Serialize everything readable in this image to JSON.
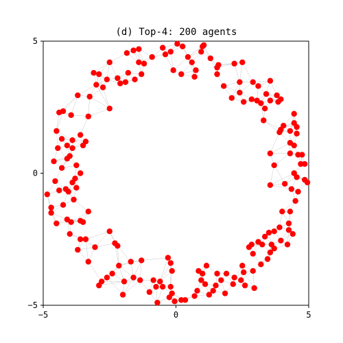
{
  "chart_data": {
    "type": "scatter",
    "title": "(d) Top-4: 200 agents",
    "xlabel": "",
    "ylabel": "",
    "xlim": [
      -5,
      5
    ],
    "ylim": [
      -5,
      5
    ],
    "x_ticks": [
      {
        "value": -5,
        "label": "−5"
      },
      {
        "value": 0,
        "label": "0"
      },
      {
        "value": 5,
        "label": "5"
      }
    ],
    "y_ticks": [
      {
        "value": -5,
        "label": "−5"
      },
      {
        "value": 0,
        "label": "0"
      },
      {
        "value": 5,
        "label": "5"
      }
    ],
    "grid": false,
    "legend": "none",
    "colors": {
      "agent": "#ff0000",
      "edge": "#b3b3b3"
    },
    "series": [
      {
        "points": [
          [
            -4.6,
            0.45
          ],
          [
            -4.85,
            -0.8
          ],
          [
            -4.7,
            -1.5
          ],
          [
            -4.55,
            -0.3
          ],
          [
            -4.4,
            -0.65
          ],
          [
            -4.25,
            -1.2
          ],
          [
            -4.1,
            -1.75
          ],
          [
            -4.0,
            -2.3
          ],
          [
            -3.85,
            -1.0
          ],
          [
            -4.5,
            -1.9
          ],
          [
            -4.3,
            0.2
          ],
          [
            -4.0,
            0.65
          ],
          [
            -3.75,
            0.3
          ],
          [
            -4.45,
            0.95
          ],
          [
            -4.5,
            1.6
          ],
          [
            -4.3,
            1.3
          ],
          [
            -4.1,
            1.05
          ],
          [
            -3.9,
            1.25
          ],
          [
            -3.6,
            1.45
          ],
          [
            -3.4,
            1.2
          ],
          [
            -4.4,
            2.3
          ],
          [
            -4.25,
            2.35
          ],
          [
            -3.95,
            2.2
          ],
          [
            -3.7,
            2.95
          ],
          [
            -3.3,
            2.15
          ],
          [
            -3.25,
            2.9
          ],
          [
            -3.1,
            3.8
          ],
          [
            -3.0,
            3.35
          ],
          [
            -2.9,
            3.75
          ],
          [
            -2.6,
            3.55
          ],
          [
            -2.5,
            4.2
          ],
          [
            -2.5,
            2.45
          ],
          [
            -2.2,
            3.6
          ],
          [
            -2.1,
            3.4
          ],
          [
            -1.9,
            3.45
          ],
          [
            -1.8,
            3.8
          ],
          [
            -1.85,
            4.55
          ],
          [
            -1.6,
            4.65
          ],
          [
            -1.4,
            4.7
          ],
          [
            -1.4,
            4.2
          ],
          [
            -1.3,
            3.75
          ],
          [
            -1.2,
            4.15
          ],
          [
            -0.9,
            4.4
          ],
          [
            -0.5,
            4.75
          ],
          [
            -0.4,
            4.5
          ],
          [
            -0.2,
            4.6
          ],
          [
            -0.1,
            3.9
          ],
          [
            0.05,
            4.9
          ],
          [
            0.25,
            4.8
          ],
          [
            0.2,
            3.75
          ],
          [
            0.45,
            4.4
          ],
          [
            0.6,
            4.2
          ],
          [
            0.7,
            3.65
          ],
          [
            0.95,
            4.6
          ],
          [
            1.0,
            4.8
          ],
          [
            1.05,
            4.85
          ],
          [
            1.3,
            4.35
          ],
          [
            1.55,
            4.0
          ],
          [
            1.6,
            4.1
          ],
          [
            1.55,
            3.75
          ],
          [
            1.8,
            3.3
          ],
          [
            2.1,
            2.85
          ],
          [
            2.2,
            4.15
          ],
          [
            2.5,
            4.2
          ],
          [
            2.4,
            3.45
          ],
          [
            2.4,
            3.05
          ],
          [
            2.55,
            2.7
          ],
          [
            2.85,
            2.8
          ],
          [
            3.05,
            2.75
          ],
          [
            3.1,
            3.3
          ],
          [
            3.2,
            2.65
          ],
          [
            3.35,
            2.45
          ],
          [
            3.4,
            3.0
          ],
          [
            3.55,
            2.75
          ],
          [
            3.55,
            3.5
          ],
          [
            3.85,
            2.7
          ],
          [
            3.8,
            2.95
          ],
          [
            3.95,
            2.8
          ],
          [
            3.3,
            2.0
          ],
          [
            3.95,
            1.65
          ],
          [
            4.05,
            1.8
          ],
          [
            4.3,
            1.6
          ],
          [
            4.45,
            1.9
          ],
          [
            4.45,
            2.25
          ],
          [
            4.55,
            1.5
          ],
          [
            4.3,
            1.15
          ],
          [
            4.45,
            1.05
          ],
          [
            4.6,
            0.7
          ],
          [
            4.75,
            0.7
          ],
          [
            4.85,
            0.35
          ],
          [
            4.45,
            0.0
          ],
          [
            4.55,
            -0.15
          ],
          [
            4.7,
            0.35
          ],
          [
            4.85,
            -0.25
          ],
          [
            4.95,
            -0.35
          ],
          [
            4.35,
            -0.6
          ],
          [
            4.5,
            -1.05
          ],
          [
            4.6,
            -0.7
          ],
          [
            4.3,
            -1.45
          ],
          [
            4.25,
            -1.9
          ],
          [
            4.25,
            -2.15
          ],
          [
            4.4,
            -2.3
          ],
          [
            4.0,
            -1.45
          ],
          [
            3.9,
            -2.05
          ],
          [
            3.7,
            -2.2
          ],
          [
            3.5,
            -2.25
          ],
          [
            3.35,
            -2.4
          ],
          [
            3.1,
            -2.6
          ],
          [
            3.25,
            -2.7
          ],
          [
            3.55,
            -3.0
          ],
          [
            3.6,
            -2.7
          ],
          [
            3.7,
            -2.85
          ],
          [
            3.45,
            -3.25
          ],
          [
            3.2,
            -3.45
          ],
          [
            2.9,
            -3.7
          ],
          [
            2.9,
            -3.05
          ],
          [
            2.85,
            -2.7
          ],
          [
            2.75,
            -2.8
          ],
          [
            2.55,
            -3.75
          ],
          [
            2.5,
            -3.5
          ],
          [
            2.45,
            -4.05
          ],
          [
            2.2,
            -3.95
          ],
          [
            2.15,
            -4.2
          ],
          [
            1.9,
            -3.8
          ],
          [
            1.7,
            -4.05
          ],
          [
            1.55,
            -3.8
          ],
          [
            1.5,
            -4.25
          ],
          [
            1.4,
            -4.45
          ],
          [
            1.25,
            -4.6
          ],
          [
            1.1,
            -4.2
          ],
          [
            1.0,
            -3.8
          ],
          [
            1.15,
            -3.5
          ],
          [
            0.85,
            -3.7
          ],
          [
            0.95,
            -4.05
          ],
          [
            0.8,
            -4.45
          ],
          [
            0.7,
            -4.65
          ],
          [
            0.35,
            -4.8
          ],
          [
            0.2,
            -4.8
          ],
          [
            -0.05,
            -4.85
          ],
          [
            -0.15,
            -4.55
          ],
          [
            -0.25,
            -4.7
          ],
          [
            -0.2,
            -4.3
          ],
          [
            -0.15,
            -3.7
          ],
          [
            -0.2,
            -3.4
          ],
          [
            -0.5,
            -4.3
          ],
          [
            -0.6,
            -4.1
          ],
          [
            -0.75,
            -4.3
          ],
          [
            -0.85,
            -4.05
          ],
          [
            -0.7,
            -4.9
          ],
          [
            -1.0,
            -4.5
          ],
          [
            -1.3,
            -3.3
          ],
          [
            -1.35,
            -4.05
          ],
          [
            -1.6,
            -3.95
          ],
          [
            -1.7,
            -3.35
          ],
          [
            -1.95,
            -4.1
          ],
          [
            -2.0,
            -4.6
          ],
          [
            -2.2,
            -2.75
          ],
          [
            -2.3,
            -2.65
          ],
          [
            -2.15,
            -3.5
          ],
          [
            -2.4,
            -3.8
          ],
          [
            -2.5,
            -2.2
          ],
          [
            -2.6,
            -3.95
          ],
          [
            -2.8,
            -4.1
          ],
          [
            -2.9,
            -4.25
          ],
          [
            -3.3,
            -3.35
          ],
          [
            -3.4,
            -2.5
          ],
          [
            -3.6,
            -2.5
          ],
          [
            -3.7,
            -2.9
          ],
          [
            -3.3,
            -1.45
          ],
          [
            -3.6,
            -1.8
          ],
          [
            -3.95,
            -1.85
          ],
          [
            -3.5,
            -1.85
          ],
          [
            -4.7,
            -1.3
          ],
          [
            -4.05,
            -0.7
          ],
          [
            -3.9,
            -0.35
          ],
          [
            -3.8,
            -0.2
          ],
          [
            -3.6,
            0.0
          ],
          [
            -3.75,
            -0.55
          ],
          [
            -4.15,
            -0.6
          ],
          [
            -3.9,
            0.95
          ],
          [
            3.55,
            0.75
          ],
          [
            3.55,
            -0.45
          ],
          [
            3.7,
            0.3
          ],
          [
            4.1,
            -0.4
          ],
          [
            4.3,
            0.75
          ],
          [
            3.9,
            1.55
          ],
          [
            -3.5,
            1.05
          ],
          [
            -4.1,
            0.55
          ],
          [
            2.6,
            -4.25
          ],
          [
            2.95,
            -4.35
          ],
          [
            3.95,
            -2.55
          ],
          [
            4.2,
            -2.7
          ],
          [
            -0.3,
            -3.2
          ],
          [
            1.85,
            -4.55
          ],
          [
            -2.75,
            3.25
          ],
          [
            -1.55,
            3.55
          ],
          [
            0.75,
            3.9
          ],
          [
            2.9,
            3.45
          ],
          [
            4.55,
            1.75
          ],
          [
            -3.05,
            -2.8
          ]
        ]
      }
    ]
  }
}
